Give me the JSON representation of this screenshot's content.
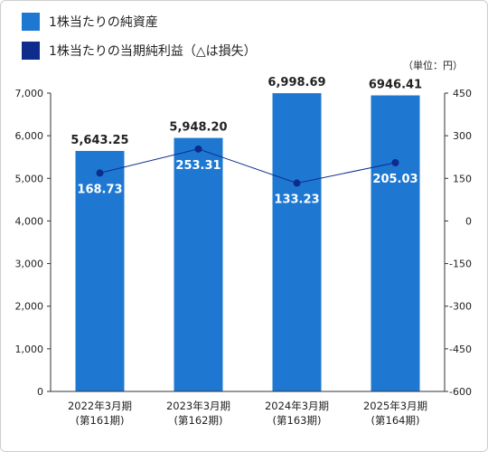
{
  "legend": [
    {
      "label": "1株当たりの純資産",
      "color": "#1e78d2"
    },
    {
      "label": "1株当たりの当期純利益（△は損失）",
      "color": "#0d2c8c"
    }
  ],
  "unit_label": "（単位：円）",
  "chart_data": {
    "type": "bar",
    "categories": [
      {
        "line1": "2022年3月期",
        "line2": "(第161期)"
      },
      {
        "line1": "2023年3月期",
        "line2": "(第162期)"
      },
      {
        "line1": "2024年3月期",
        "line2": "(第163期)"
      },
      {
        "line1": "2025年3月期",
        "line2": "(第164期)"
      }
    ],
    "series": [
      {
        "name": "1株当たりの純資産",
        "type": "bar",
        "axis": "left",
        "color": "#1e78d2",
        "values": [
          5643.25,
          5948.2,
          6998.69,
          6946.41
        ],
        "labels": [
          "5,643.25",
          "5,948.20",
          "6,998.69",
          "6946.41"
        ]
      },
      {
        "name": "1株当たりの当期純利益（△は損失）",
        "type": "line",
        "axis": "right",
        "color": "#0d2c8c",
        "values": [
          168.73,
          253.31,
          133.23,
          205.03
        ],
        "labels": [
          "168.73",
          "253.31",
          "133.23",
          "205.03"
        ]
      }
    ],
    "y_left": {
      "min": 0,
      "max": 7000,
      "ticks": [
        "0",
        "1,000",
        "2,000",
        "3,000",
        "4,000",
        "5,000",
        "6,000",
        "7,000"
      ]
    },
    "y_right": {
      "min": -600,
      "max": 450,
      "ticks": [
        "-600",
        "-450",
        "-300",
        "-150",
        "0",
        "150",
        "300",
        "450"
      ]
    },
    "grid": false
  }
}
